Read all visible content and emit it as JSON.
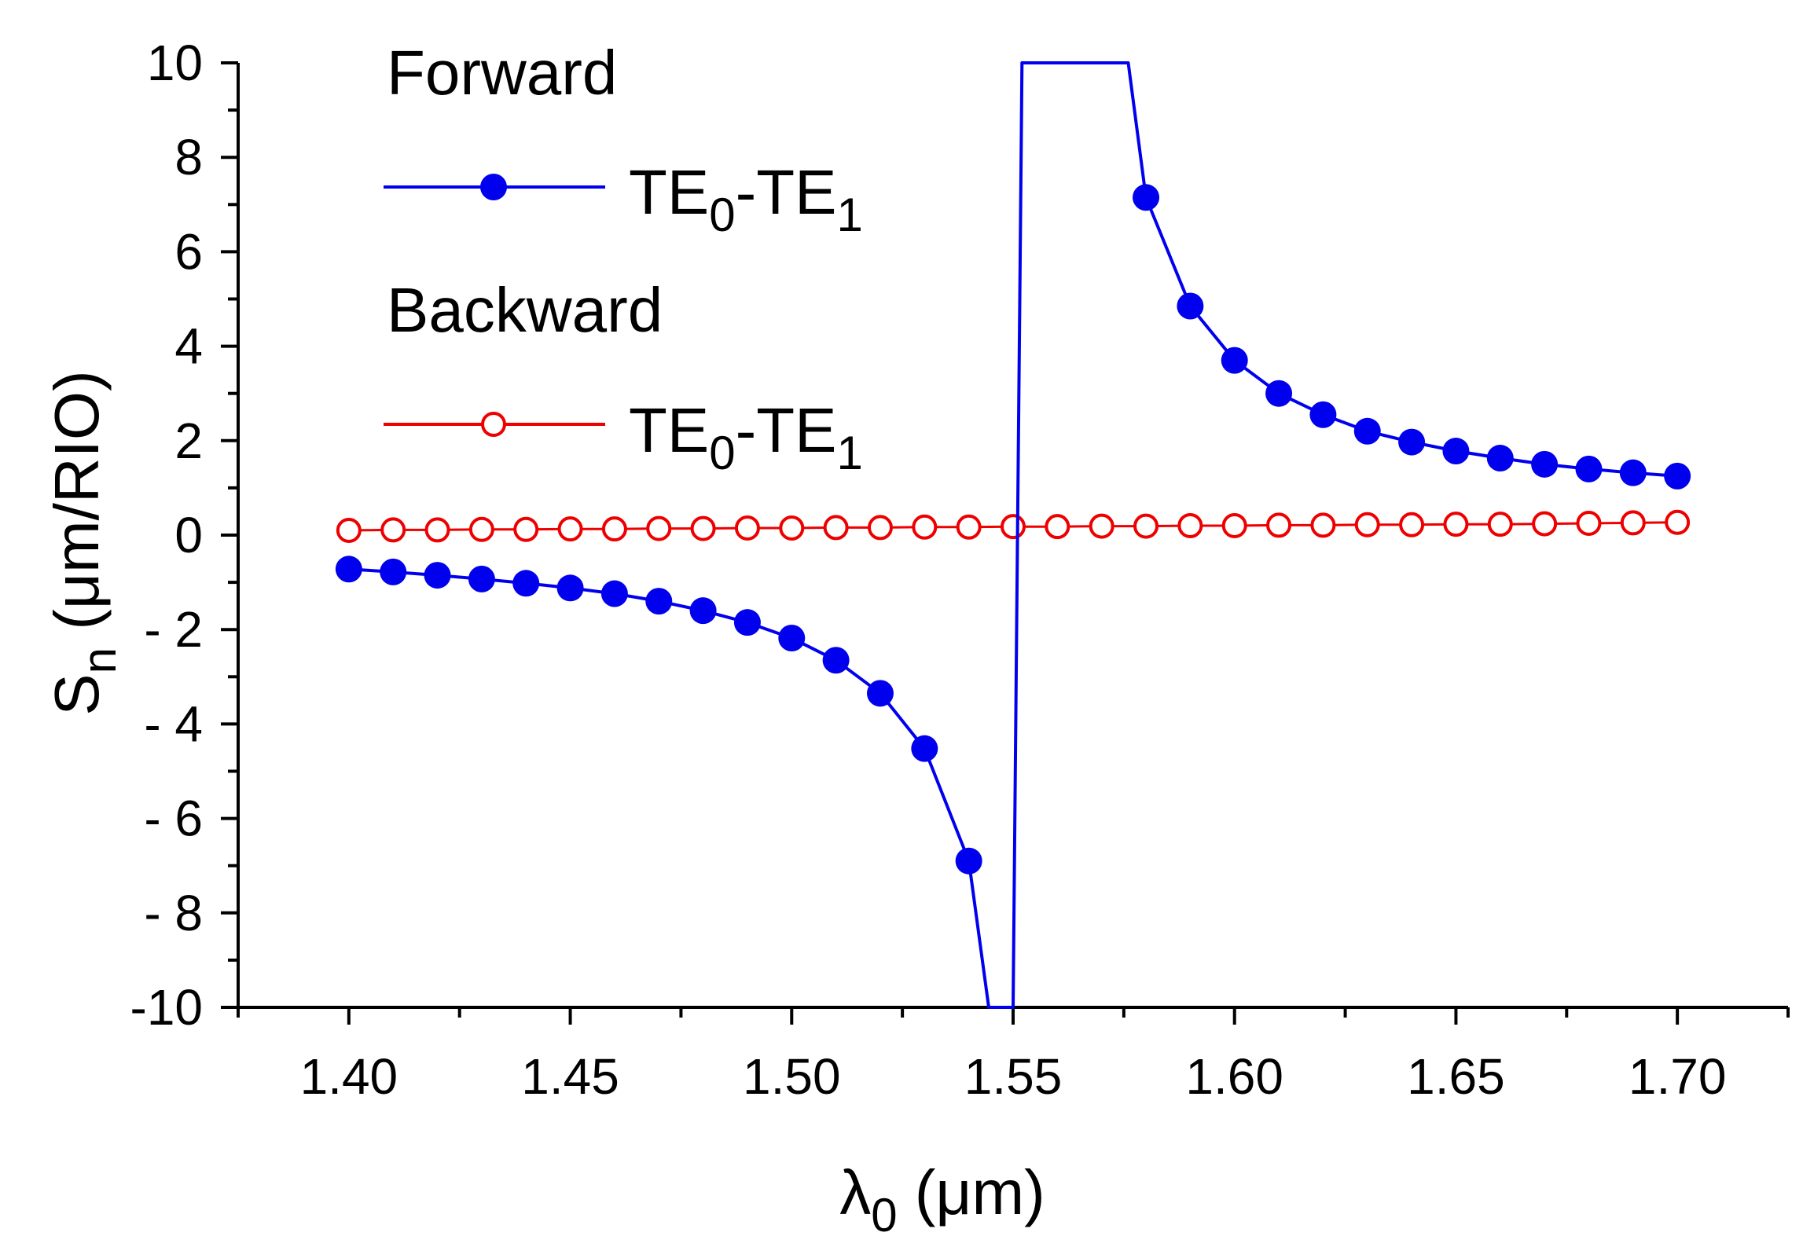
{
  "chart_data": {
    "type": "line",
    "xlabel": {
      "symbol": "λ",
      "sub": "0",
      "unit": " (μm)"
    },
    "ylabel": {
      "symbol": "S",
      "sub": "n",
      "unit": " (μm/RIO)"
    },
    "xlim": [
      1.375,
      1.725
    ],
    "ylim": [
      -10,
      10
    ],
    "xticks": [
      1.4,
      1.45,
      1.5,
      1.55,
      1.6,
      1.65,
      1.7
    ],
    "xtick_labels": [
      "1.40",
      "1.45",
      "1.50",
      "1.55",
      "1.60",
      "1.65",
      "1.70"
    ],
    "yticks": [
      10,
      8,
      6,
      4,
      2,
      0,
      -2,
      -4,
      -6,
      -8,
      -10
    ],
    "ytick_labels": [
      "10",
      "8",
      "6",
      "4",
      "2",
      "0",
      "- 2",
      "- 4",
      "- 6",
      "- 8",
      "-10"
    ],
    "grid": false,
    "legend": {
      "placement": "top-left",
      "groups": [
        {
          "heading": "Forward",
          "label": {
            "a": "TE",
            "a_sub": "0",
            "b": "-TE",
            "b_sub": "1"
          },
          "series": 0
        },
        {
          "heading": "Backward",
          "label": {
            "a": "TE",
            "a_sub": "0",
            "b": "-TE",
            "b_sub": "1"
          },
          "series": 1
        }
      ]
    },
    "series": [
      {
        "name": "Forward TE0-TE1",
        "color": "#0000ee",
        "marker": "filled-circle",
        "x": [
          1.4,
          1.41,
          1.42,
          1.43,
          1.44,
          1.45,
          1.46,
          1.47,
          1.48,
          1.49,
          1.5,
          1.51,
          1.52,
          1.53,
          1.54,
          1.58,
          1.59,
          1.6,
          1.61,
          1.62,
          1.63,
          1.64,
          1.65,
          1.66,
          1.67,
          1.68,
          1.69,
          1.7
        ],
        "y": [
          -0.72,
          -0.78,
          -0.85,
          -0.93,
          -1.02,
          -1.12,
          -1.24,
          -1.4,
          -1.6,
          -1.85,
          -2.18,
          -2.65,
          -3.35,
          -4.52,
          -6.9,
          7.15,
          4.85,
          3.7,
          3.0,
          2.55,
          2.2,
          1.97,
          1.78,
          1.63,
          1.5,
          1.4,
          1.32,
          1.25
        ],
        "curve_x": [
          1.4,
          1.41,
          1.42,
          1.43,
          1.44,
          1.45,
          1.46,
          1.47,
          1.48,
          1.49,
          1.5,
          1.51,
          1.52,
          1.53,
          1.54,
          1.5445,
          1.55,
          1.551,
          1.5515,
          1.552,
          1.576,
          1.58,
          1.59,
          1.6,
          1.61,
          1.62,
          1.63,
          1.64,
          1.65,
          1.66,
          1.67,
          1.68,
          1.69,
          1.7
        ],
        "curve_y": [
          -0.72,
          -0.78,
          -0.85,
          -0.93,
          -1.02,
          -1.12,
          -1.24,
          -1.4,
          -1.6,
          -1.85,
          -2.18,
          -2.65,
          -3.35,
          -4.52,
          -6.9,
          -10,
          -10,
          0,
          5,
          10,
          10,
          7.15,
          4.85,
          3.7,
          3.0,
          2.55,
          2.2,
          1.97,
          1.78,
          1.63,
          1.5,
          1.4,
          1.32,
          1.25
        ]
      },
      {
        "name": "Backward TE0-TE1",
        "color": "#ee0000",
        "marker": "open-circle",
        "x": [
          1.4,
          1.41,
          1.42,
          1.43,
          1.44,
          1.45,
          1.46,
          1.47,
          1.48,
          1.49,
          1.5,
          1.51,
          1.52,
          1.53,
          1.54,
          1.55,
          1.56,
          1.57,
          1.58,
          1.59,
          1.6,
          1.61,
          1.62,
          1.63,
          1.64,
          1.65,
          1.66,
          1.67,
          1.68,
          1.69,
          1.7
        ],
        "y": [
          0.1,
          0.11,
          0.11,
          0.12,
          0.12,
          0.13,
          0.13,
          0.14,
          0.14,
          0.15,
          0.15,
          0.16,
          0.16,
          0.17,
          0.17,
          0.18,
          0.18,
          0.19,
          0.19,
          0.2,
          0.2,
          0.21,
          0.21,
          0.22,
          0.22,
          0.23,
          0.23,
          0.24,
          0.25,
          0.26,
          0.27
        ]
      }
    ]
  }
}
